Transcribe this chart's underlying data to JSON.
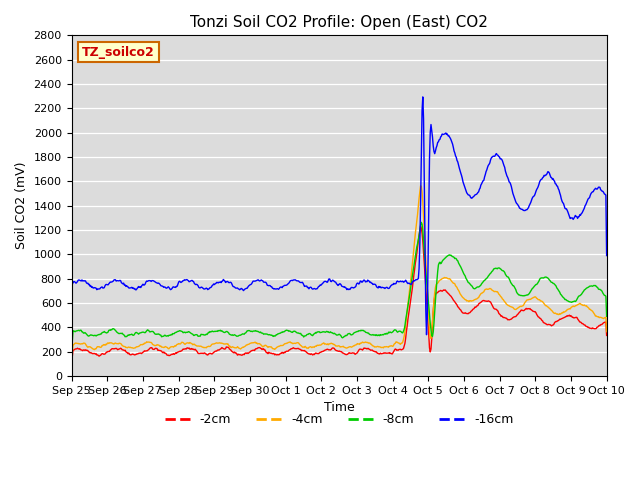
{
  "title": "Tonzi Soil CO2 Profile: Open (East) CO2",
  "ylabel": "Soil CO2 (mV)",
  "xlabel": "Time",
  "legend_label": "TZ_soilco2",
  "ylim": [
    0,
    2800
  ],
  "series_labels": [
    "-2cm",
    "-4cm",
    "-8cm",
    "-16cm"
  ],
  "series_colors": [
    "#ff0000",
    "#ffaa00",
    "#00cc00",
    "#0000ff"
  ],
  "background_color": "#dcdcdc",
  "x_tick_labels": [
    "Sep 25",
    "Sep 26",
    "Sep 27",
    "Sep 28",
    "Sep 29",
    "Sep 30",
    "Oct 1",
    "Oct 2",
    "Oct 3",
    "Oct 4",
    "Oct 5",
    "Oct 6",
    "Oct 7",
    "Oct 8",
    "Oct 9",
    "Oct 10"
  ],
  "figsize": [
    6.4,
    4.8
  ],
  "dpi": 100
}
